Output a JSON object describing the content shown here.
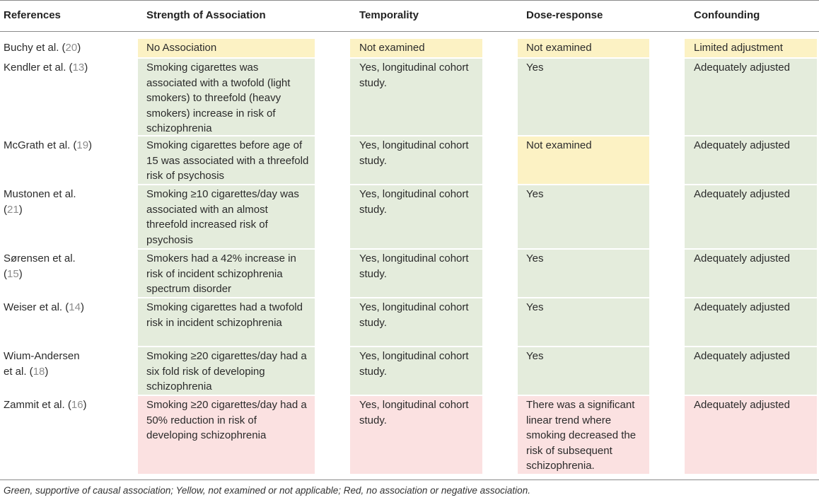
{
  "headers": {
    "references": "References",
    "strength": "Strength of Association",
    "temporality": "Temporality",
    "dose_response": "Dose-response",
    "confounding": "Confounding"
  },
  "rows": [
    {
      "ref_prefix": "Buchy et al. (",
      "ref_num": "20",
      "ref_suffix": ")",
      "strength": "No Association",
      "strength_color": "yellow",
      "temporality": "Not examined",
      "temporality_color": "yellow",
      "dose": "Not examined",
      "dose_color": "yellow",
      "confounding": "Limited adjustment",
      "confounding_color": "yellow"
    },
    {
      "ref_prefix": "Kendler et al. (",
      "ref_num": "13",
      "ref_suffix": ")",
      "strength": "Smoking cigarettes was associated with a twofold (light smokers) to threefold (heavy smokers) increase in risk of schizophrenia",
      "strength_color": "green",
      "temporality": "Yes, longitudinal cohort study.",
      "temporality_color": "green",
      "dose": "Yes",
      "dose_color": "green",
      "confounding": "Adequately adjusted",
      "confounding_color": "green"
    },
    {
      "ref_prefix": "McGrath et al. (",
      "ref_num": "19",
      "ref_suffix": ")",
      "strength": "Smoking cigarettes before age of 15 was associated with a threefold risk of psychosis",
      "strength_color": "green",
      "temporality": "Yes, longitudinal cohort study.",
      "temporality_color": "green",
      "dose": "Not examined",
      "dose_color": "yellow",
      "confounding": "Adequately adjusted",
      "confounding_color": "green"
    },
    {
      "ref_prefix": "Mustonen et al. (",
      "ref_num": "21",
      "ref_suffix": ")",
      "strength": "Smoking ≥10 cigarettes/day was associated with an almost threefold increased risk of psychosis",
      "strength_color": "green",
      "temporality": "Yes, longitudinal cohort study.",
      "temporality_color": "green",
      "dose": "Yes",
      "dose_color": "green",
      "confounding": "Adequately adjusted",
      "confounding_color": "green"
    },
    {
      "ref_prefix": "Sørensen et al. (",
      "ref_num": "15",
      "ref_suffix": ")",
      "strength": "Smokers had a 42% increase in risk of incident schizophrenia spectrum disorder",
      "strength_color": "green",
      "temporality": "Yes, longitudinal cohort study.",
      "temporality_color": "green",
      "dose": "Yes",
      "dose_color": "green",
      "confounding": "Adequately adjusted",
      "confounding_color": "green"
    },
    {
      "ref_prefix": "Weiser et al. (",
      "ref_num": "14",
      "ref_suffix": ")",
      "strength": "Smoking cigarettes had a twofold risk in incident schizophrenia",
      "strength_color": "green",
      "temporality": "Yes, longitudinal cohort study.",
      "temporality_color": "green",
      "dose": "Yes",
      "dose_color": "green",
      "confounding": "Adequately adjusted",
      "confounding_color": "green"
    },
    {
      "ref_prefix": "Wium-Andersen et al. (",
      "ref_num": "18",
      "ref_suffix": ")",
      "strength": "Smoking ≥20 cigarettes/day had a six fold risk of developing schizophrenia",
      "strength_color": "green",
      "temporality": "Yes, longitudinal cohort study.",
      "temporality_color": "green",
      "dose": "Yes",
      "dose_color": "green",
      "confounding": "Adequately adjusted",
      "confounding_color": "green"
    },
    {
      "ref_prefix": "Zammit et al. (",
      "ref_num": "16",
      "ref_suffix": ")",
      "strength": "Smoking ≥20 cigarettes/day had a 50% reduction in risk of developing schizophrenia",
      "strength_color": "red",
      "temporality": "Yes, longitudinal cohort study.",
      "temporality_color": "red",
      "dose": "There was a significant linear trend where smoking decreased the risk of subsequent schizophrenia.",
      "dose_color": "red",
      "confounding": "Adequately adjusted",
      "confounding_color": "red"
    }
  ],
  "footnote": "Green, supportive of causal association; Yellow, not examined or not applicable; Red, no association or negative association.",
  "colors": {
    "green": "#e4ecdc",
    "yellow": "#fcf2c4",
    "red": "#fbe1e1",
    "reference_number": "#8d8d8d"
  }
}
